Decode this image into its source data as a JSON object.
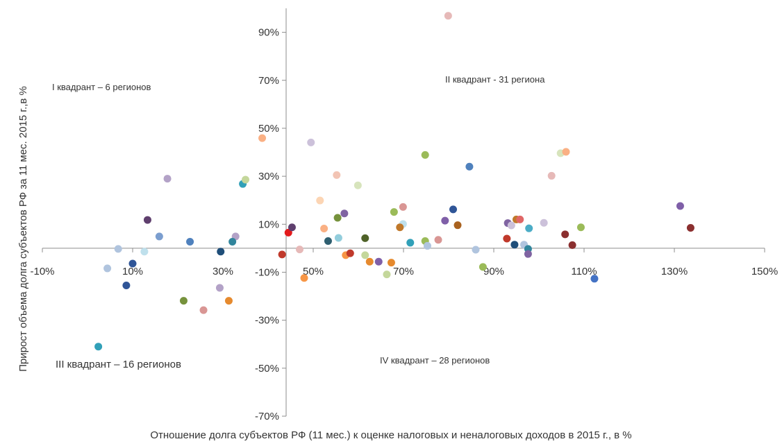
{
  "chart_data": {
    "type": "scatter",
    "title": "",
    "xlabel": "Отношение долга субъектов РФ (11 мес.) к оценке налоговых и неналоговых доходов в 2015 г., в %",
    "ylabel": "Прирост объема долга субъектов РФ за 11 мес. 2015 г.,в %",
    "xlim": [
      -10,
      150
    ],
    "ylim": [
      -70,
      100
    ],
    "grid": false,
    "legend": "none",
    "x_ticks": [
      "-10%",
      "10%",
      "30%",
      "50%",
      "70%",
      "90%",
      "110%",
      "130%",
      "150%"
    ],
    "y_ticks": [
      "90%",
      "70%",
      "50%",
      "30%",
      "10%",
      "-10%",
      "-30%",
      "-50%",
      "-70%"
    ],
    "annotations": [
      "I квадрант – 6 регионов",
      "II квадрант - 31 региона",
      "III квадрант – 16 регионов",
      "IV квадрант – 28 регионов"
    ],
    "points": [
      {
        "x": 17.7,
        "y": 29.0,
        "color": "#b3a2c7"
      },
      {
        "x": 34.4,
        "y": 26.8,
        "color": "#31a0b8"
      },
      {
        "x": 35.0,
        "y": 28.6,
        "color": "#c4d79b"
      },
      {
        "x": 13.3,
        "y": 11.8,
        "color": "#5f3f6e"
      },
      {
        "x": 15.9,
        "y": 4.9,
        "color": "#7b9ecf"
      },
      {
        "x": 32.8,
        "y": 4.9,
        "color": "#b3a2c7"
      },
      {
        "x": 22.7,
        "y": 2.7,
        "color": "#4f81bd"
      },
      {
        "x": 32.1,
        "y": 2.7,
        "color": "#31859c"
      },
      {
        "x": 6.8,
        "y": -0.3,
        "color": "#b0c4de"
      },
      {
        "x": 12.6,
        "y": -1.4,
        "color": "#bfe0ec"
      },
      {
        "x": 29.5,
        "y": -1.4,
        "color": "#1f4e79"
      },
      {
        "x": 10.0,
        "y": -6.4,
        "color": "#2f5597"
      },
      {
        "x": 4.4,
        "y": -8.4,
        "color": "#b0c4de"
      },
      {
        "x": 8.6,
        "y": -15.5,
        "color": "#2f5597"
      },
      {
        "x": 29.3,
        "y": -16.5,
        "color": "#b3a2c7"
      },
      {
        "x": 21.3,
        "y": -21.9,
        "color": "#76923c"
      },
      {
        "x": 31.3,
        "y": -21.9,
        "color": "#e68a2e"
      },
      {
        "x": 25.7,
        "y": -25.8,
        "color": "#d99694"
      },
      {
        "x": 2.4,
        "y": -41.0,
        "color": "#31a0b8"
      },
      {
        "x": 38.7,
        "y": 45.9,
        "color": "#fab084"
      },
      {
        "x": 79.9,
        "y": 96.9,
        "color": "#e6b9b8"
      },
      {
        "x": 49.5,
        "y": 44.1,
        "color": "#ccc1da"
      },
      {
        "x": 74.8,
        "y": 38.9,
        "color": "#9bbb59"
      },
      {
        "x": 104.8,
        "y": 39.6,
        "color": "#d7e4bc"
      },
      {
        "x": 106.0,
        "y": 40.2,
        "color": "#fab084"
      },
      {
        "x": 84.6,
        "y": 34.0,
        "color": "#4f81bd"
      },
      {
        "x": 55.2,
        "y": 30.5,
        "color": "#f2c4b4"
      },
      {
        "x": 102.8,
        "y": 30.2,
        "color": "#e6b9b8"
      },
      {
        "x": 59.9,
        "y": 26.2,
        "color": "#d7e4bc"
      },
      {
        "x": 51.5,
        "y": 19.9,
        "color": "#fcd5b4"
      },
      {
        "x": 69.9,
        "y": 17.2,
        "color": "#d99694"
      },
      {
        "x": 67.9,
        "y": 15.1,
        "color": "#9bbb59"
      },
      {
        "x": 81.0,
        "y": 16.2,
        "color": "#2f5597"
      },
      {
        "x": 56.9,
        "y": 14.5,
        "color": "#8064a2"
      },
      {
        "x": 55.4,
        "y": 12.7,
        "color": "#76923c"
      },
      {
        "x": 79.2,
        "y": 11.5,
        "color": "#7f5fa8"
      },
      {
        "x": 82.0,
        "y": 9.6,
        "color": "#a9621f"
      },
      {
        "x": 69.9,
        "y": 10.1,
        "color": "#bfe0ec"
      },
      {
        "x": 69.2,
        "y": 8.7,
        "color": "#c0782a"
      },
      {
        "x": 93.1,
        "y": 10.5,
        "color": "#8064a2"
      },
      {
        "x": 93.9,
        "y": 9.5,
        "color": "#ccc1da"
      },
      {
        "x": 95.0,
        "y": 12.0,
        "color": "#c0782a"
      },
      {
        "x": 95.8,
        "y": 12.0,
        "color": "#e06666"
      },
      {
        "x": 101.1,
        "y": 10.6,
        "color": "#ccc1da"
      },
      {
        "x": 97.8,
        "y": 8.3,
        "color": "#4bacc6"
      },
      {
        "x": 109.3,
        "y": 8.7,
        "color": "#9bbb59"
      },
      {
        "x": 131.3,
        "y": 17.6,
        "color": "#7f5fa8"
      },
      {
        "x": 133.6,
        "y": 8.5,
        "color": "#8b2f2f"
      },
      {
        "x": 105.8,
        "y": 5.8,
        "color": "#8b2f2f"
      },
      {
        "x": 44.5,
        "y": 6.5,
        "color": "#e31a1c"
      },
      {
        "x": 45.3,
        "y": 8.7,
        "color": "#5f3f6e"
      },
      {
        "x": 52.4,
        "y": 8.2,
        "color": "#fab084"
      },
      {
        "x": 53.3,
        "y": 3.0,
        "color": "#2f5f70"
      },
      {
        "x": 55.6,
        "y": 4.3,
        "color": "#92cddc"
      },
      {
        "x": 61.5,
        "y": 4.2,
        "color": "#4f6228"
      },
      {
        "x": 71.5,
        "y": 2.3,
        "color": "#31a0b8"
      },
      {
        "x": 74.8,
        "y": 3.0,
        "color": "#9bbb59"
      },
      {
        "x": 75.3,
        "y": 1.0,
        "color": "#b0c4de"
      },
      {
        "x": 77.7,
        "y": 3.5,
        "color": "#d99694"
      },
      {
        "x": 86.0,
        "y": -0.6,
        "color": "#b0c4de"
      },
      {
        "x": 94.6,
        "y": 1.5,
        "color": "#1f4e79"
      },
      {
        "x": 96.7,
        "y": 1.5,
        "color": "#b0c4de"
      },
      {
        "x": 97.6,
        "y": -0.3,
        "color": "#31859c"
      },
      {
        "x": 97.6,
        "y": -2.4,
        "color": "#8064a2"
      },
      {
        "x": 92.9,
        "y": 4.0,
        "color": "#c0392b"
      },
      {
        "x": 107.4,
        "y": 1.3,
        "color": "#8b2f2f"
      },
      {
        "x": 112.3,
        "y": -12.7,
        "color": "#4472c4"
      },
      {
        "x": 87.6,
        "y": -7.8,
        "color": "#9bbb59"
      },
      {
        "x": 43.1,
        "y": -2.6,
        "color": "#c0392b"
      },
      {
        "x": 47.0,
        "y": -0.5,
        "color": "#e6b9b8"
      },
      {
        "x": 48.0,
        "y": -12.4,
        "color": "#f79646"
      },
      {
        "x": 57.2,
        "y": -2.9,
        "color": "#f79646"
      },
      {
        "x": 58.2,
        "y": -2.1,
        "color": "#c0392b"
      },
      {
        "x": 61.5,
        "y": -2.9,
        "color": "#c4d79b"
      },
      {
        "x": 62.5,
        "y": -5.6,
        "color": "#e68a2e"
      },
      {
        "x": 64.5,
        "y": -5.6,
        "color": "#7f5fa8"
      },
      {
        "x": 66.3,
        "y": -10.9,
        "color": "#c4d79b"
      },
      {
        "x": 67.3,
        "y": -6.0,
        "color": "#e68a2e"
      }
    ]
  }
}
